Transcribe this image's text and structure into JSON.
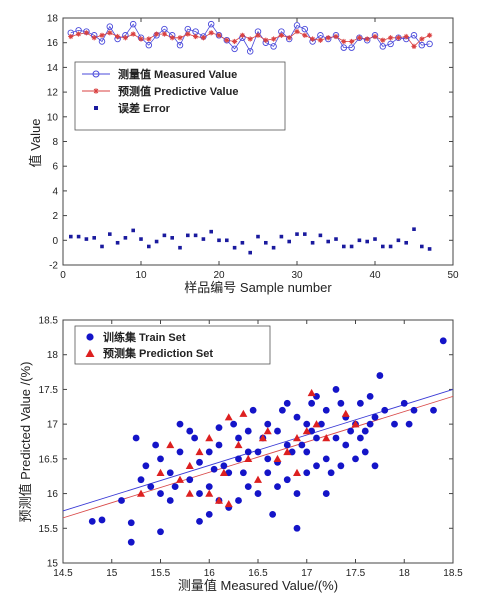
{
  "chart_data": [
    {
      "type": "line",
      "xlabel": "样品编号 Sample number",
      "ylabel": "值 Value",
      "xlim": [
        0,
        50
      ],
      "ylim": [
        -2,
        18
      ],
      "xticks": [
        0,
        10,
        20,
        30,
        40,
        50
      ],
      "yticks": [
        -2,
        0,
        2,
        4,
        6,
        8,
        10,
        12,
        14,
        16,
        18
      ],
      "x": [
        1,
        2,
        3,
        4,
        5,
        6,
        7,
        8,
        9,
        10,
        11,
        12,
        13,
        14,
        15,
        16,
        17,
        18,
        19,
        20,
        21,
        22,
        23,
        24,
        25,
        26,
        27,
        28,
        29,
        30,
        31,
        32,
        33,
        34,
        35,
        36,
        37,
        38,
        39,
        40,
        41,
        42,
        43,
        44,
        45,
        46,
        47
      ],
      "series": [
        {
          "name": "测量值 Measured Value",
          "marker": "open-circle",
          "color": "#4a4adb",
          "values": [
            16.8,
            17.0,
            16.9,
            16.6,
            16.1,
            17.3,
            16.3,
            16.6,
            17.5,
            16.4,
            15.8,
            16.6,
            17.1,
            16.6,
            15.8,
            17.1,
            16.9,
            16.5,
            17.5,
            16.6,
            16.2,
            15.5,
            16.4,
            15.3,
            16.9,
            16.0,
            15.7,
            16.9,
            16.3,
            17.4,
            17.1,
            16.1,
            16.6,
            16.3,
            16.6,
            15.6,
            15.6,
            16.4,
            16.2,
            16.6,
            15.7,
            15.9,
            16.4,
            16.3,
            16.6,
            15.8,
            15.9
          ]
        },
        {
          "name": "预测值 Predictive Value",
          "marker": "star",
          "color": "#d94040",
          "values": [
            16.5,
            16.7,
            16.8,
            16.4,
            16.6,
            16.8,
            16.5,
            16.4,
            16.7,
            16.3,
            16.3,
            16.7,
            16.7,
            16.4,
            16.4,
            16.7,
            16.5,
            16.4,
            16.8,
            16.6,
            16.2,
            16.1,
            16.6,
            16.3,
            16.6,
            16.2,
            16.3,
            16.6,
            16.4,
            16.9,
            16.6,
            16.3,
            16.2,
            16.4,
            16.5,
            16.1,
            16.1,
            16.4,
            16.3,
            16.5,
            16.2,
            16.4,
            16.4,
            16.5,
            15.7,
            16.3,
            16.6
          ]
        },
        {
          "name": "误差  Error",
          "marker": "filled-square",
          "color": "#1a1a9e",
          "values": [
            0.3,
            0.3,
            0.1,
            0.2,
            -0.5,
            0.5,
            -0.2,
            0.2,
            0.8,
            0.1,
            -0.5,
            -0.1,
            0.4,
            0.2,
            -0.6,
            0.4,
            0.4,
            0.1,
            0.7,
            0.0,
            0.0,
            -0.6,
            -0.2,
            -1.0,
            0.3,
            -0.2,
            -0.6,
            0.3,
            -0.1,
            0.5,
            0.5,
            -0.2,
            0.4,
            -0.1,
            0.1,
            -0.5,
            -0.5,
            0.0,
            -0.1,
            0.1,
            -0.5,
            -0.5,
            0.0,
            -0.2,
            0.9,
            -0.5,
            -0.7
          ]
        }
      ],
      "legend": "upper-left"
    },
    {
      "type": "scatter",
      "xlabel": "测量值 Measured Value/(%)",
      "ylabel": "预测值 Predicted Value /(%)",
      "xlim": [
        14.5,
        18.5
      ],
      "ylim": [
        15,
        18.5
      ],
      "xticks": [
        14.5,
        15,
        15.5,
        16,
        16.5,
        17,
        17.5,
        18,
        18.5
      ],
      "yticks": [
        15,
        15.5,
        16,
        16.5,
        17,
        17.5,
        18,
        18.5
      ],
      "legend": "upper-left",
      "series": [
        {
          "name": "训练集 Train Set",
          "marker": "filled-circle",
          "color": "#1414c8",
          "fit": [
            [
              14.5,
              15.75
            ],
            [
              18.5,
              17.5
            ]
          ],
          "points": [
            [
              14.8,
              15.6
            ],
            [
              14.9,
              15.62
            ],
            [
              15.1,
              15.9
            ],
            [
              15.2,
              15.58
            ],
            [
              15.2,
              15.3
            ],
            [
              15.3,
              16.2
            ],
            [
              15.25,
              16.8
            ],
            [
              15.4,
              16.1
            ],
            [
              15.5,
              16.5
            ],
            [
              15.5,
              15.45
            ],
            [
              15.5,
              16.0
            ],
            [
              15.6,
              16.3
            ],
            [
              15.6,
              15.9
            ],
            [
              15.7,
              16.6
            ],
            [
              15.7,
              17.0
            ],
            [
              15.8,
              16.9
            ],
            [
              15.8,
              16.2
            ],
            [
              15.9,
              16.0
            ],
            [
              15.9,
              15.6
            ],
            [
              16.0,
              16.6
            ],
            [
              16.0,
              15.7
            ],
            [
              16.0,
              16.1
            ],
            [
              16.1,
              16.7
            ],
            [
              16.1,
              15.9
            ],
            [
              16.2,
              15.8
            ],
            [
              16.2,
              16.3
            ],
            [
              16.3,
              16.5
            ],
            [
              16.3,
              16.8
            ],
            [
              16.3,
              15.9
            ],
            [
              16.4,
              16.1
            ],
            [
              16.4,
              16.9
            ],
            [
              16.45,
              17.2
            ],
            [
              16.5,
              16.6
            ],
            [
              16.5,
              16.0
            ],
            [
              16.6,
              16.3
            ],
            [
              16.6,
              17.0
            ],
            [
              16.65,
              15.7
            ],
            [
              16.7,
              16.9
            ],
            [
              16.7,
              16.45
            ],
            [
              16.8,
              17.3
            ],
            [
              16.8,
              16.2
            ],
            [
              16.8,
              16.7
            ],
            [
              16.9,
              17.1
            ],
            [
              16.9,
              16.0
            ],
            [
              16.9,
              15.5
            ],
            [
              17.0,
              16.6
            ],
            [
              17.0,
              16.3
            ],
            [
              17.0,
              17.0
            ],
            [
              17.05,
              16.9
            ],
            [
              17.1,
              16.8
            ],
            [
              17.1,
              17.4
            ],
            [
              17.2,
              16.5
            ],
            [
              17.2,
              17.2
            ],
            [
              17.2,
              16.0
            ],
            [
              17.3,
              16.8
            ],
            [
              17.3,
              17.5
            ],
            [
              17.35,
              16.4
            ],
            [
              17.4,
              17.1
            ],
            [
              17.4,
              16.7
            ],
            [
              17.5,
              16.5
            ],
            [
              17.5,
              17.0
            ],
            [
              17.55,
              17.3
            ],
            [
              17.6,
              16.6
            ],
            [
              17.6,
              16.9
            ],
            [
              17.7,
              16.4
            ],
            [
              17.7,
              17.1
            ],
            [
              17.75,
              17.7
            ],
            [
              17.8,
              17.2
            ],
            [
              17.9,
              17.0
            ],
            [
              18.0,
              17.3
            ],
            [
              18.05,
              17.0
            ],
            [
              18.1,
              17.2
            ],
            [
              18.3,
              17.2
            ],
            [
              18.4,
              18.2
            ],
            [
              15.35,
              16.4
            ],
            [
              15.45,
              16.7
            ],
            [
              15.65,
              16.1
            ],
            [
              15.85,
              16.8
            ],
            [
              16.15,
              16.4
            ],
            [
              16.25,
              17.0
            ],
            [
              16.55,
              16.8
            ],
            [
              16.75,
              17.2
            ],
            [
              16.95,
              16.7
            ],
            [
              17.15,
              17.0
            ],
            [
              17.25,
              16.3
            ],
            [
              17.45,
              16.9
            ],
            [
              17.65,
              17.4
            ],
            [
              16.35,
              16.3
            ],
            [
              16.6,
              16.5
            ],
            [
              16.85,
              16.6
            ],
            [
              17.05,
              17.3
            ],
            [
              17.35,
              17.3
            ],
            [
              17.55,
              16.8
            ],
            [
              16.1,
              16.95
            ],
            [
              16.4,
              16.6
            ],
            [
              16.7,
              16.1
            ],
            [
              17.1,
              16.4
            ],
            [
              17.65,
              17.0
            ],
            [
              15.9,
              16.45
            ],
            [
              16.05,
              16.35
            ]
          ]
        },
        {
          "name": "预测集 Prediction Set",
          "marker": "filled-triangle",
          "color": "#dd2020",
          "fit": [
            [
              14.5,
              15.65
            ],
            [
              18.5,
              17.4
            ]
          ],
          "points": [
            [
              15.3,
              16.0
            ],
            [
              15.5,
              16.3
            ],
            [
              15.6,
              16.7
            ],
            [
              15.7,
              16.2
            ],
            [
              15.8,
              16.4
            ],
            [
              15.8,
              16.0
            ],
            [
              15.9,
              16.6
            ],
            [
              16.0,
              16.0
            ],
            [
              16.0,
              16.8
            ],
            [
              16.1,
              15.9
            ],
            [
              16.15,
              16.3
            ],
            [
              16.2,
              17.1
            ],
            [
              16.2,
              15.85
            ],
            [
              16.3,
              16.7
            ],
            [
              16.4,
              16.5
            ],
            [
              16.5,
              16.2
            ],
            [
              16.6,
              16.9
            ],
            [
              16.7,
              16.5
            ],
            [
              16.8,
              16.6
            ],
            [
              16.9,
              16.8
            ],
            [
              16.9,
              16.3
            ],
            [
              17.0,
              16.9
            ],
            [
              17.1,
              17.0
            ],
            [
              17.2,
              16.8
            ],
            [
              17.4,
              17.15
            ],
            [
              17.5,
              17.0
            ],
            [
              16.35,
              17.15
            ],
            [
              16.55,
              16.8
            ],
            [
              17.05,
              17.45
            ]
          ]
        }
      ]
    }
  ]
}
